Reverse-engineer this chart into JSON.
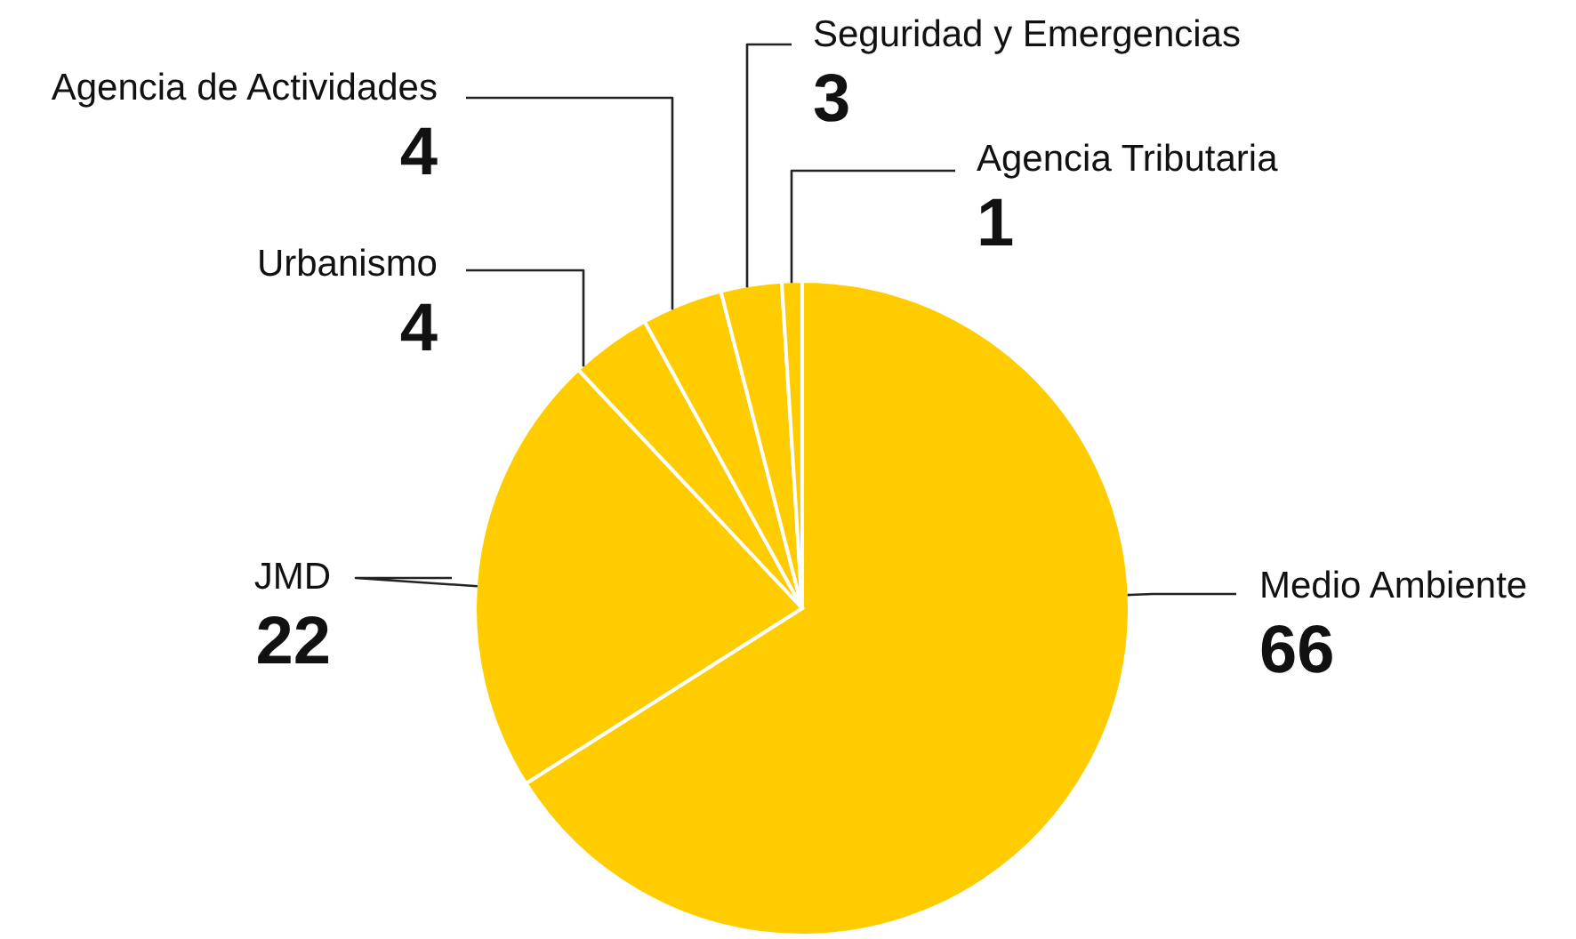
{
  "chart_data": {
    "type": "pie",
    "categories": [
      "Medio Ambiente",
      "JMD",
      "Urbanismo",
      "Agencia de Actividades",
      "Seguridad y Emergencias",
      "Agencia Tributaria"
    ],
    "values": [
      66,
      22,
      4,
      4,
      3,
      1
    ],
    "colors": [
      "#ffcc00",
      "#ffcc00",
      "#ffcc00",
      "#ffcc00",
      "#ffcc00",
      "#ffcc00"
    ],
    "data_labels": true
  }
}
